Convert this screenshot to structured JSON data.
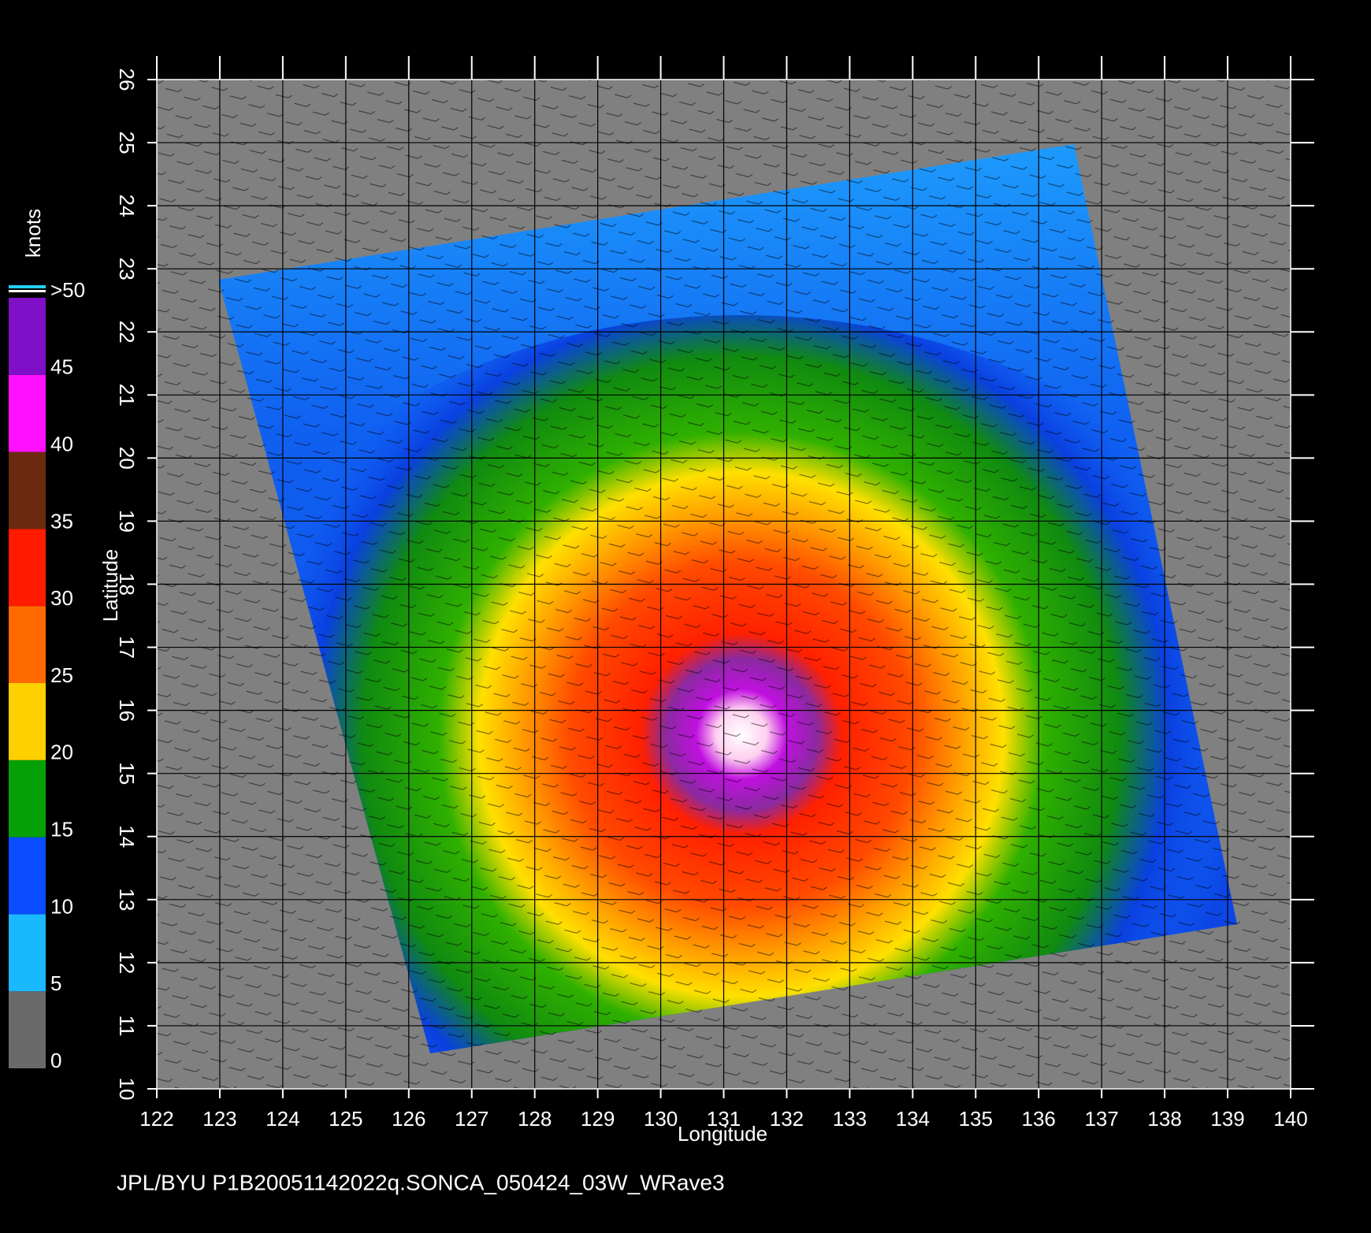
{
  "chart_data": {
    "type": "wind-map",
    "caption": "JPL/BYU  P1B20051142022q.SONCA_050424_03W_WRave3",
    "x_label": "Longitude",
    "y_label": "Latitude",
    "xlim": [
      122,
      140
    ],
    "ylim": [
      10,
      26
    ],
    "xticks": [
      122,
      123,
      124,
      125,
      126,
      127,
      128,
      129,
      130,
      131,
      132,
      133,
      134,
      135,
      136,
      137,
      138,
      139,
      140
    ],
    "yticks": [
      10,
      11,
      12,
      13,
      14,
      15,
      16,
      17,
      18,
      19,
      20,
      21,
      22,
      23,
      24,
      25,
      26
    ],
    "grid": true,
    "colorbar": {
      "label": "knots",
      "lim": [
        0,
        50
      ],
      "ticks": [
        0,
        5,
        10,
        15,
        20,
        25,
        30,
        35,
        40,
        45,
        {
          "value": 50,
          "label": ">50"
        }
      ],
      "colors": [
        "#6a6a6a",
        "#1ab8ff",
        "#0a4cff",
        "#05a005",
        "#ffd000",
        "#ff6a00",
        "#ff1a00",
        "#6b2a10",
        "#ff10ff",
        "#8010c8"
      ]
    }
  }
}
